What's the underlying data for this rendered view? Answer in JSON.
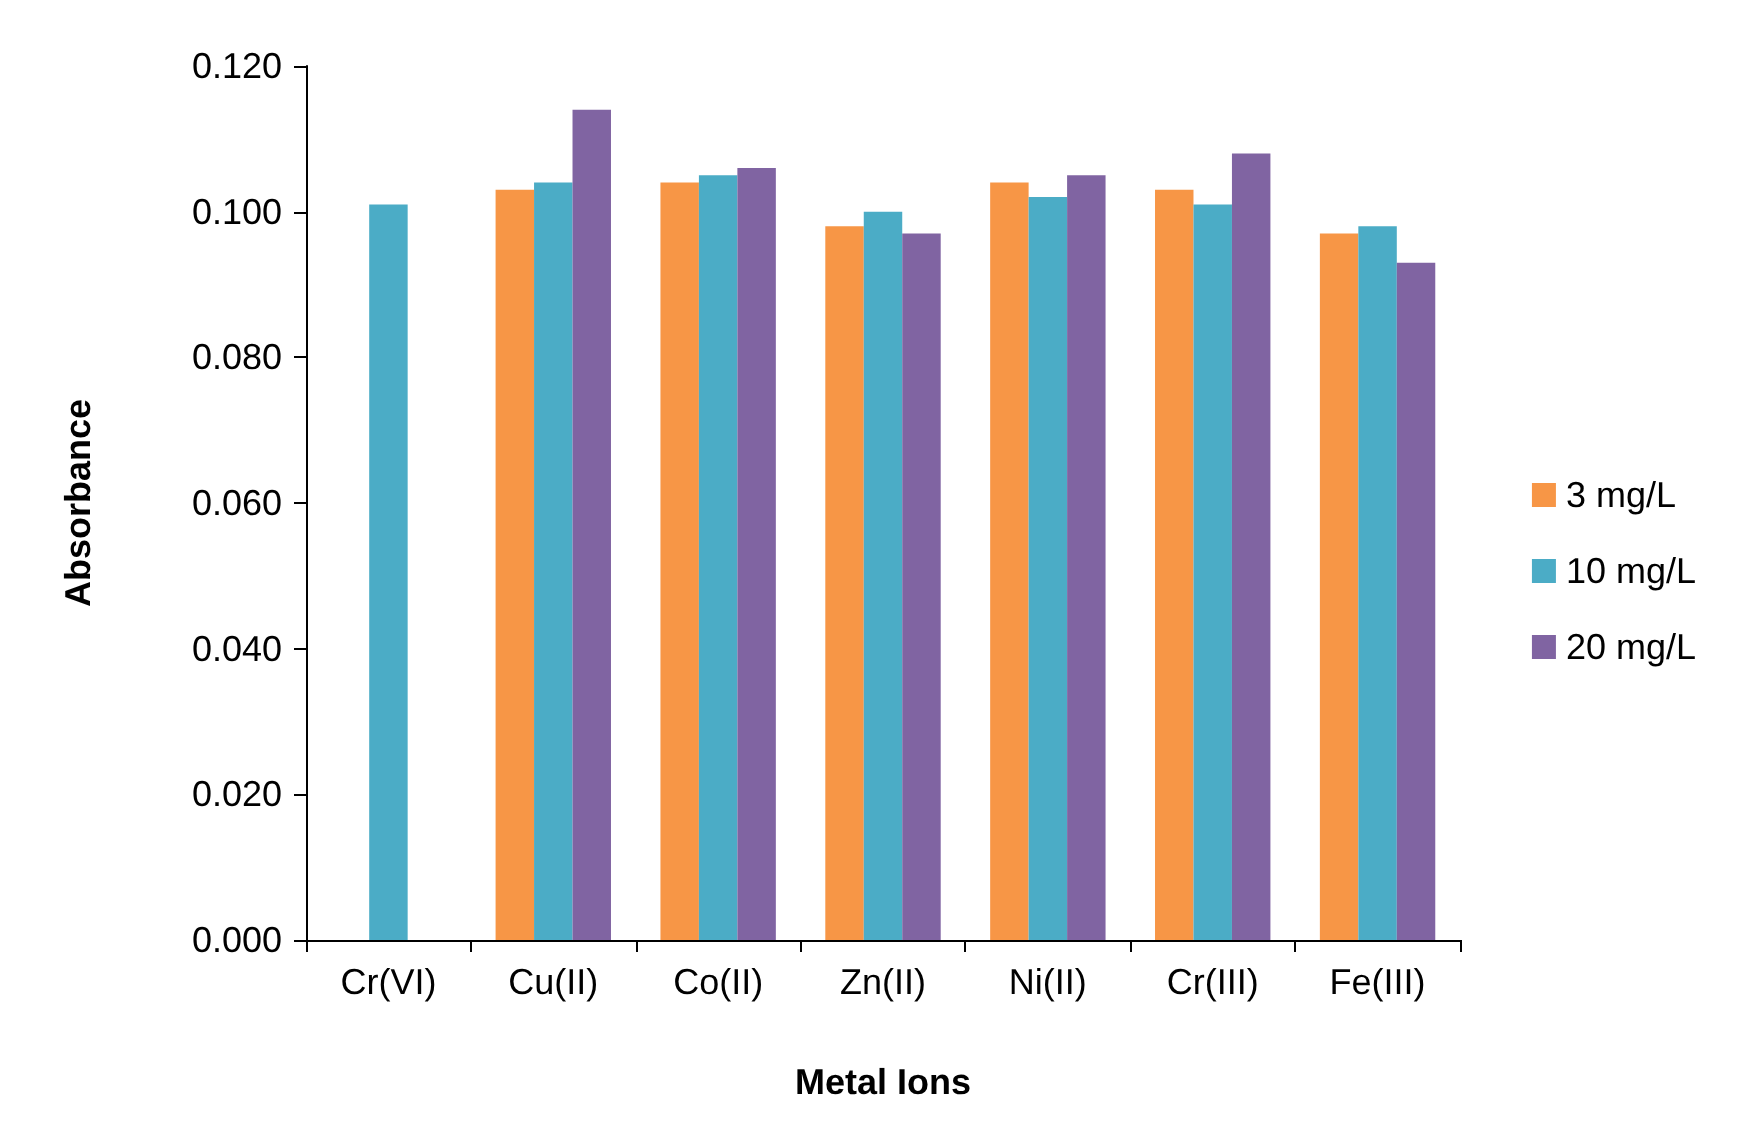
{
  "chart_data": {
    "type": "bar",
    "xlabel": "Metal Ions",
    "ylabel": "Absorbance",
    "categories": [
      "Cr(VI)",
      "Cu(II)",
      "Co(II)",
      "Zn(II)",
      "Ni(II)",
      "Cr(III)",
      "Fe(III)"
    ],
    "series": [
      {
        "name": "3 mg/L",
        "color": "#f79646",
        "values": [
          null,
          0.103,
          0.104,
          0.098,
          0.104,
          0.103,
          0.097
        ]
      },
      {
        "name": "10 mg/L",
        "color": "#4bacc6",
        "values": [
          0.101,
          0.104,
          0.105,
          0.1,
          0.102,
          0.101,
          0.098
        ]
      },
      {
        "name": "20 mg/L",
        "color": "#8064a2",
        "values": [
          null,
          0.114,
          0.106,
          0.097,
          0.105,
          0.108,
          0.093
        ]
      }
    ],
    "ylim": [
      0,
      0.12
    ],
    "yticks": [
      {
        "value": 0,
        "label": "0.000"
      },
      {
        "value": 0.02,
        "label": "0.020"
      },
      {
        "value": 0.04,
        "label": "0.040"
      },
      {
        "value": 0.06,
        "label": "0.060"
      },
      {
        "value": 0.08,
        "label": "0.080"
      },
      {
        "value": 0.1,
        "label": "0.100"
      },
      {
        "value": 0.12,
        "label": "0.120"
      }
    ],
    "grid": false,
    "legend": "right"
  }
}
